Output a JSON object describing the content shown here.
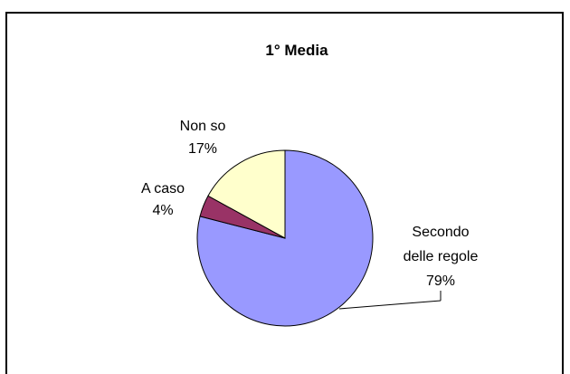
{
  "chart_data": {
    "type": "pie",
    "title": "1° Media",
    "slices": [
      {
        "label": "Secondo delle regole",
        "label_lines": [
          "Secondo",
          "delle regole"
        ],
        "percent_text": "79%",
        "value": 79,
        "color": "#9999ff"
      },
      {
        "label": "A caso",
        "label_lines": [
          "A caso"
        ],
        "percent_text": "4%",
        "value": 4,
        "color": "#993366"
      },
      {
        "label": "Non so",
        "label_lines": [
          "Non so"
        ],
        "percent_text": "17%",
        "value": 17,
        "color": "#ffffcc"
      }
    ],
    "legend": "none"
  }
}
